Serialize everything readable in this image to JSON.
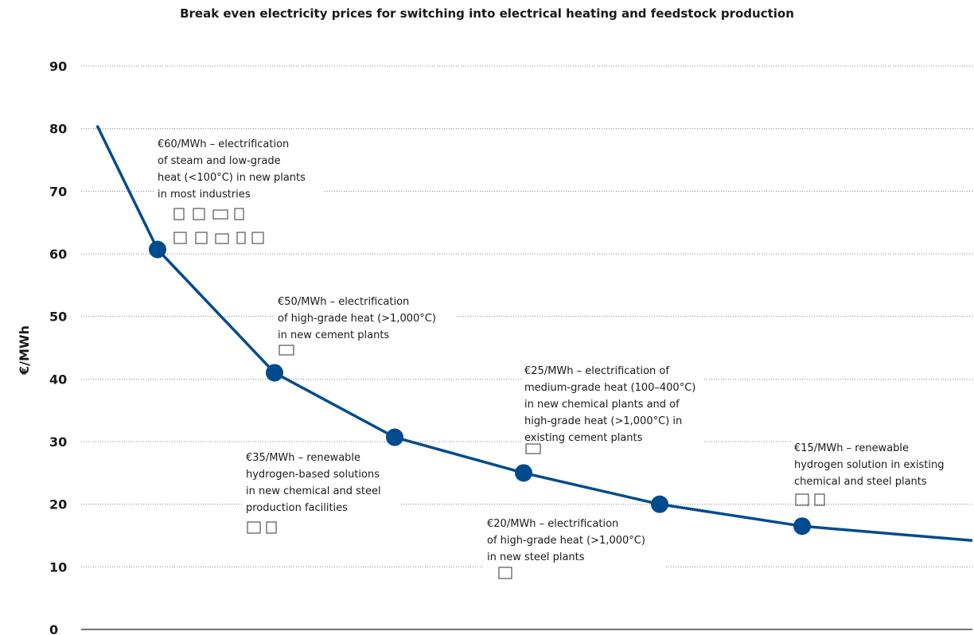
{
  "chart_data": {
    "type": "line",
    "title": "Break even electricity prices for switching into electrical heating and feedstock production",
    "y_label": "€/MWh",
    "ylim": [
      0,
      90
    ],
    "yticks": [
      0,
      10,
      20,
      30,
      40,
      50,
      60,
      70,
      80,
      90
    ],
    "grid": true,
    "color": "#004b8d",
    "values": [
      80.5,
      60.7,
      41,
      30.7,
      25,
      20,
      16.5,
      14.2
    ],
    "annotations": [
      {
        "lines": [
          "€60/MWh – electrification",
          "of steam and low-grade",
          "heat (<100°C) in new plants",
          "in most industries"
        ]
      },
      {
        "lines": [
          "€50/MWh – electrification",
          "of high-grade heat (>1,000°C)",
          "in new cement plants"
        ]
      },
      {
        "lines": [
          "€25/MWh – electrification of",
          "medium-grade heat (100–400°C)",
          "in new chemical plants and of",
          "high-grade heat (>1,000°C) in",
          "existing cement plants"
        ]
      },
      {
        "lines": [
          "€15/MWh – renewable",
          "hydrogen solution in existing",
          "chemical and steel plants"
        ]
      },
      {
        "lines": [
          "€35/MWh – renewable",
          "hydrogen-based solutions",
          "in new chemical and steel",
          "production facilities"
        ]
      },
      {
        "lines": [
          "€20/MWh – electrification",
          "of high-grade heat (>1,000°C)",
          "in new steel plants"
        ]
      }
    ]
  }
}
